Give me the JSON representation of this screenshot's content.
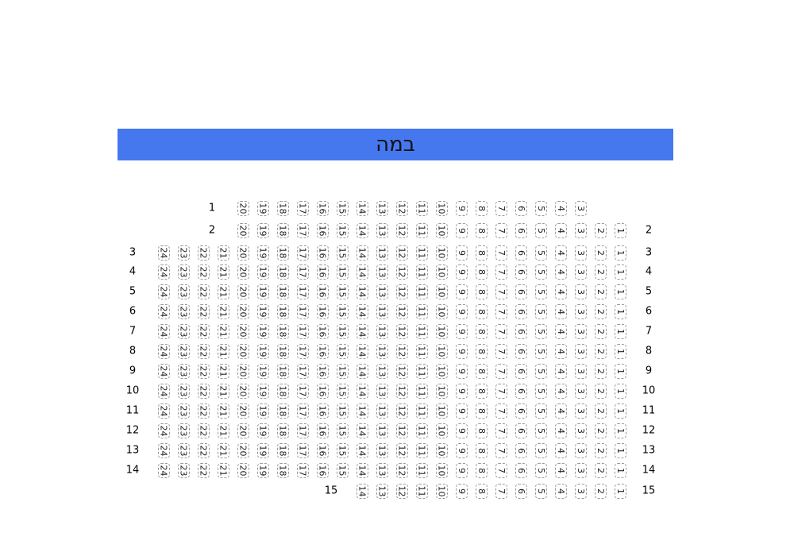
{
  "stage": {
    "label": "במה",
    "color": "#4577ee"
  },
  "rows": [
    {
      "left_label": "1",
      "right_label": null,
      "seats": [
        20,
        19,
        18,
        17,
        16,
        15,
        14,
        13,
        12,
        11,
        10,
        9,
        8,
        7,
        6,
        5,
        4,
        3
      ]
    },
    {
      "left_label": "2",
      "right_label": "2",
      "seats": [
        20,
        19,
        18,
        17,
        16,
        15,
        14,
        13,
        12,
        11,
        10,
        9,
        8,
        7,
        6,
        5,
        4,
        3,
        2,
        1
      ]
    },
    {
      "left_label": "3",
      "right_label": "3",
      "seats": [
        24,
        23,
        22,
        21,
        20,
        19,
        18,
        17,
        16,
        15,
        14,
        13,
        12,
        11,
        10,
        9,
        8,
        7,
        6,
        5,
        4,
        3,
        2,
        1
      ]
    },
    {
      "left_label": "4",
      "right_label": "4",
      "seats": [
        24,
        23,
        22,
        21,
        20,
        19,
        18,
        17,
        16,
        15,
        14,
        13,
        12,
        11,
        10,
        9,
        8,
        7,
        6,
        5,
        4,
        3,
        2,
        1
      ]
    },
    {
      "left_label": "5",
      "right_label": "5",
      "seats": [
        24,
        23,
        22,
        21,
        20,
        19,
        18,
        17,
        16,
        15,
        14,
        13,
        12,
        11,
        10,
        9,
        8,
        7,
        6,
        5,
        4,
        3,
        2,
        1
      ]
    },
    {
      "left_label": "6",
      "right_label": "6",
      "seats": [
        24,
        23,
        22,
        21,
        20,
        19,
        18,
        17,
        16,
        15,
        14,
        13,
        12,
        11,
        10,
        9,
        8,
        7,
        6,
        5,
        4,
        3,
        2,
        1
      ]
    },
    {
      "left_label": "7",
      "right_label": "7",
      "seats": [
        24,
        23,
        22,
        21,
        20,
        19,
        18,
        17,
        16,
        15,
        14,
        13,
        12,
        11,
        10,
        9,
        8,
        7,
        6,
        5,
        4,
        3,
        2,
        1
      ]
    },
    {
      "left_label": "8",
      "right_label": "8",
      "seats": [
        24,
        23,
        22,
        21,
        20,
        19,
        18,
        17,
        16,
        15,
        14,
        13,
        12,
        11,
        10,
        9,
        8,
        7,
        6,
        5,
        4,
        3,
        2,
        1
      ]
    },
    {
      "left_label": "9",
      "right_label": "9",
      "seats": [
        24,
        23,
        22,
        21,
        20,
        19,
        18,
        17,
        16,
        15,
        14,
        13,
        12,
        11,
        10,
        9,
        8,
        7,
        6,
        5,
        4,
        3,
        2,
        1
      ]
    },
    {
      "left_label": "10",
      "right_label": "10",
      "seats": [
        24,
        23,
        22,
        21,
        20,
        19,
        18,
        17,
        16,
        15,
        14,
        13,
        12,
        11,
        10,
        9,
        8,
        7,
        6,
        5,
        4,
        3,
        2,
        1
      ]
    },
    {
      "left_label": "11",
      "right_label": "11",
      "seats": [
        24,
        23,
        22,
        21,
        20,
        19,
        18,
        17,
        16,
        15,
        14,
        13,
        12,
        11,
        10,
        9,
        8,
        7,
        6,
        5,
        4,
        3,
        2,
        1
      ]
    },
    {
      "left_label": "12",
      "right_label": "12",
      "seats": [
        24,
        23,
        22,
        21,
        20,
        19,
        18,
        17,
        16,
        15,
        14,
        13,
        12,
        11,
        10,
        9,
        8,
        7,
        6,
        5,
        4,
        3,
        2,
        1
      ]
    },
    {
      "left_label": "13",
      "right_label": "13",
      "seats": [
        24,
        23,
        22,
        21,
        20,
        19,
        18,
        17,
        16,
        15,
        14,
        13,
        12,
        11,
        10,
        9,
        8,
        7,
        6,
        5,
        4,
        3,
        2,
        1
      ]
    },
    {
      "left_label": "14",
      "right_label": "14",
      "seats": [
        24,
        23,
        22,
        21,
        20,
        19,
        18,
        17,
        16,
        15,
        14,
        13,
        12,
        11,
        10,
        9,
        8,
        7,
        6,
        5,
        4,
        3,
        2,
        1
      ]
    },
    {
      "left_label": "15",
      "right_label": "15",
      "seats": [
        14,
        13,
        12,
        11,
        10,
        9,
        8,
        7,
        6,
        5,
        4,
        3,
        2,
        1
      ]
    }
  ]
}
